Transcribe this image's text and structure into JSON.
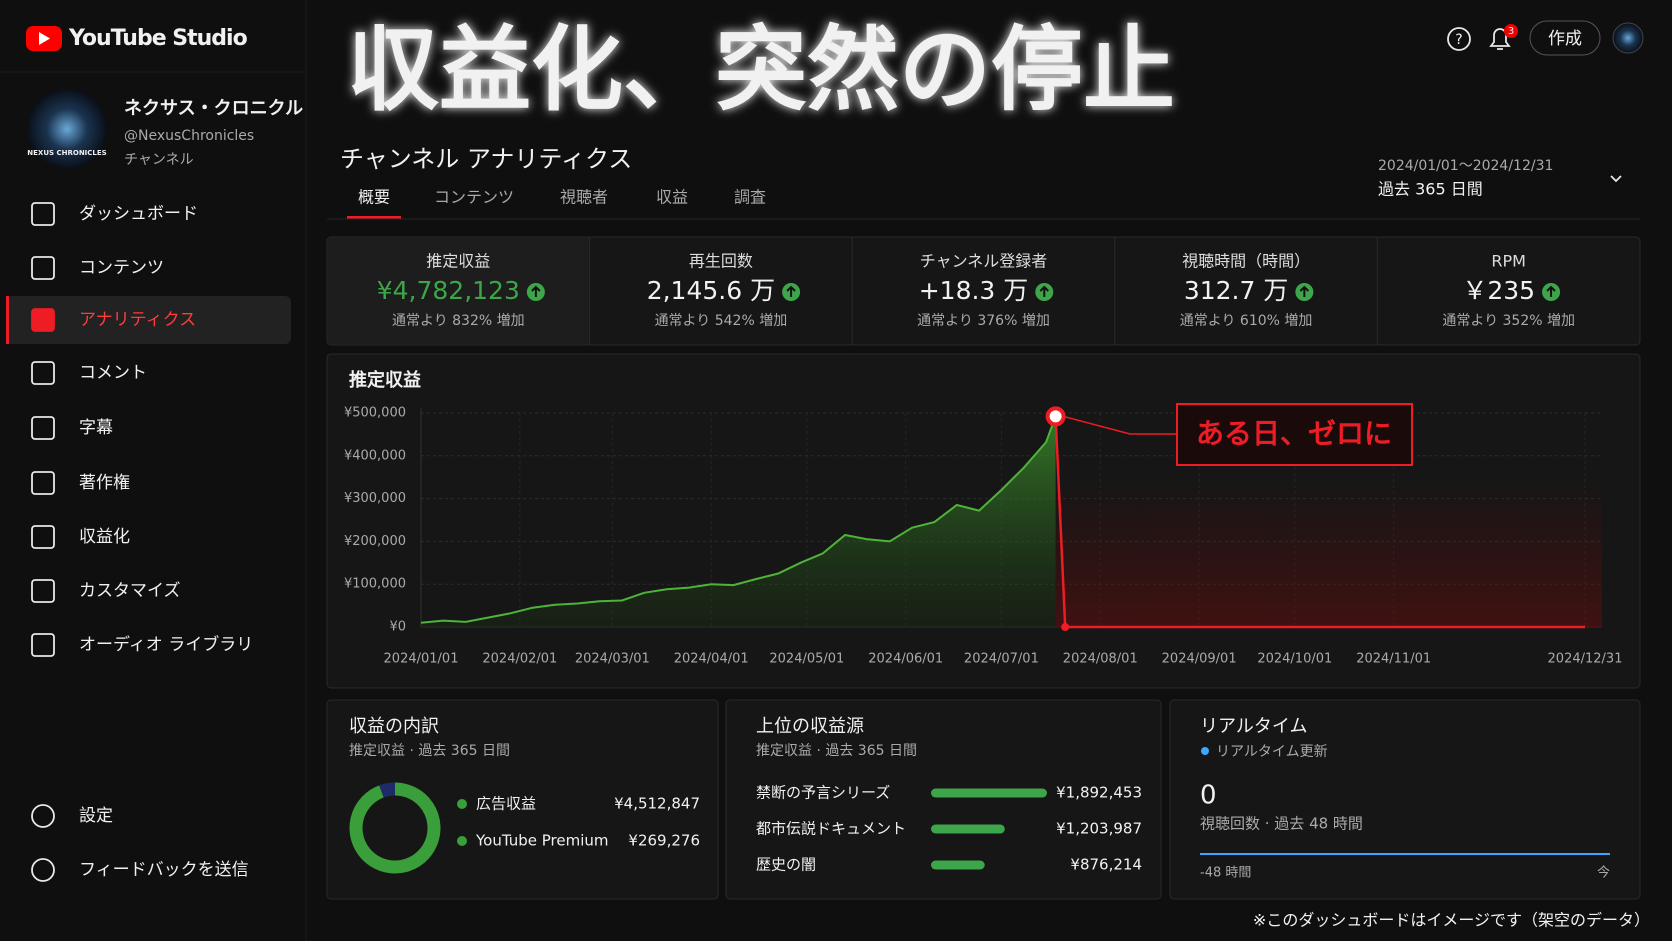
{
  "sidebar": {
    "brand": "YouTube Studio",
    "channel": {
      "name": "ネクサス・クロニクル",
      "handle": "@NexusChronicles",
      "label": "チャンネル",
      "avatar_text": "NEXUS CHRONICLES"
    },
    "nav": [
      "ダッシュボード",
      "コンテンツ",
      "アナリティクス",
      "コメント",
      "字幕",
      "著作権",
      "収益化",
      "カスタマイズ",
      "オーディオ ライブラリ"
    ],
    "active": 2,
    "footer": [
      "設定",
      "フィードバックを送信"
    ]
  },
  "header": {
    "headline": "収益化、突然の停止",
    "title": "チャンネル アナリティクス",
    "tabs": [
      "概要",
      "コンテンツ",
      "視聴者",
      "収益",
      "調査"
    ],
    "active_tab": 0,
    "date_range": "2024/01/01～2024/12/31",
    "period": "過去 365 日間",
    "create": "作成",
    "notifications": "3"
  },
  "kpis": [
    {
      "label": "推定収益",
      "value": "¥4,782,123",
      "change": "通常より 832% 増加"
    },
    {
      "label": "再生回数",
      "value": "2,145.6 万",
      "change": "通常より 542% 増加"
    },
    {
      "label": "チャンネル登録者",
      "value": "+18.3 万",
      "change": "通常より 376% 増加"
    },
    {
      "label": "視聴時間（時間）",
      "value": "312.7 万",
      "change": "通常より 610% 増加"
    },
    {
      "label": "RPM",
      "value": "￥235",
      "change": "通常より 352% 増加"
    }
  ],
  "chart_data": {
    "type": "area",
    "title": "推定収益",
    "annotation": "ある日、ゼロに",
    "x": [
      "2024/01/01",
      "2024/01/08",
      "2024/01/15",
      "2024/01/22",
      "2024/01/29",
      "2024/02/05",
      "2024/02/12",
      "2024/02/19",
      "2024/02/26",
      "2024/03/04",
      "2024/03/11",
      "2024/03/18",
      "2024/03/25",
      "2024/04/01",
      "2024/04/08",
      "2024/04/15",
      "2024/04/22",
      "2024/04/29",
      "2024/05/06",
      "2024/05/13",
      "2024/05/20",
      "2024/05/27",
      "2024/06/03",
      "2024/06/10",
      "2024/06/17",
      "2024/06/24",
      "2024/07/01",
      "2024/07/08",
      "2024/07/15",
      "2024/07/18",
      "2024/07/21",
      "2024/12/31"
    ],
    "values": [
      10000,
      15000,
      12000,
      22000,
      32000,
      45000,
      52000,
      55000,
      60000,
      62000,
      80000,
      88000,
      92000,
      100000,
      98000,
      112000,
      125000,
      150000,
      172000,
      215000,
      205000,
      200000,
      232000,
      245000,
      285000,
      272000,
      320000,
      372000,
      432000,
      492000,
      0,
      0
    ],
    "colors": {
      "rise": "#4fb33a",
      "fall": "#ee1c25"
    },
    "xlim": [
      "2024/01/01",
      "2024/12/31"
    ],
    "xticks": [
      "2024/01/01",
      "2024/02/01",
      "2024/03/01",
      "2024/04/01",
      "2024/05/01",
      "2024/06/01",
      "2024/07/01",
      "2024/08/01",
      "2024/09/01",
      "2024/10/01",
      "2024/11/01",
      "2024/12/31"
    ],
    "ylim": [
      0,
      500000
    ],
    "yticks": [
      {
        "value": 0,
        "label": "¥0"
      },
      {
        "value": 100000,
        "label": "¥100,000"
      },
      {
        "value": 200000,
        "label": "¥200,000"
      },
      {
        "value": 300000,
        "label": "¥300,000"
      },
      {
        "value": 400000,
        "label": "¥400,000"
      },
      {
        "value": 500000,
        "label": "¥500,000"
      }
    ],
    "grid": true
  },
  "breakdown": {
    "title": "収益の内訳",
    "subtitle": "推定収益 · 過去 365 日間",
    "items": [
      {
        "name": "広告収益",
        "value": 4512847,
        "label": "¥4,512,847",
        "color": "#3a9e3a"
      },
      {
        "name": "YouTube Premium",
        "value": 269276,
        "label": "¥269,276",
        "color": "#1f2a6b"
      }
    ]
  },
  "sources": {
    "title": "上位の収益源",
    "subtitle": "推定収益 · 過去 365 日間",
    "items": [
      {
        "name": "禁断の予言シリーズ",
        "value": 1892453,
        "label": "¥1,892,453"
      },
      {
        "name": "都市伝説ドキュメント",
        "value": 1203987,
        "label": "¥1,203,987"
      },
      {
        "name": "歴史の闇",
        "value": 876214,
        "label": "¥876,214"
      }
    ]
  },
  "realtime": {
    "title": "リアルタイム",
    "status": "リアルタイム更新",
    "count": 0,
    "caption": "視聴回数 · 過去 48 時間",
    "start": "-48 時間",
    "end": "今"
  },
  "footnote": "※このダッシュボードはイメージです（架空のデータ）"
}
